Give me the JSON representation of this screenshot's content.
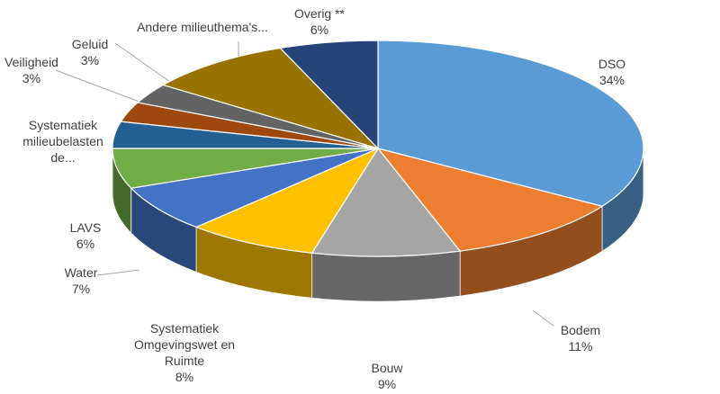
{
  "chart_data": {
    "type": "pie3d",
    "categories": [
      "DSO",
      "Bodem",
      "Bouw",
      "Systematiek Omgevingswet en Ruimte",
      "Water",
      "LAVS",
      "Systematiek milieubelastende...",
      "Veiligheid",
      "Geluid",
      "Andere milieuthema's...",
      "Overig **"
    ],
    "values": [
      34,
      11,
      9,
      8,
      7,
      6,
      4,
      3,
      3,
      9,
      6
    ],
    "value_labels": [
      "34%",
      "11%",
      "9%",
      "8%",
      "7%",
      "6%",
      null,
      "3%",
      "3%",
      null,
      "6%"
    ],
    "colors": [
      "#5b9bd5",
      "#ed7d31",
      "#a5a5a5",
      "#ffc000",
      "#4472c4",
      "#70ad47",
      "#255e91",
      "#9e480e",
      "#636363",
      "#997300",
      "#264478"
    ]
  }
}
